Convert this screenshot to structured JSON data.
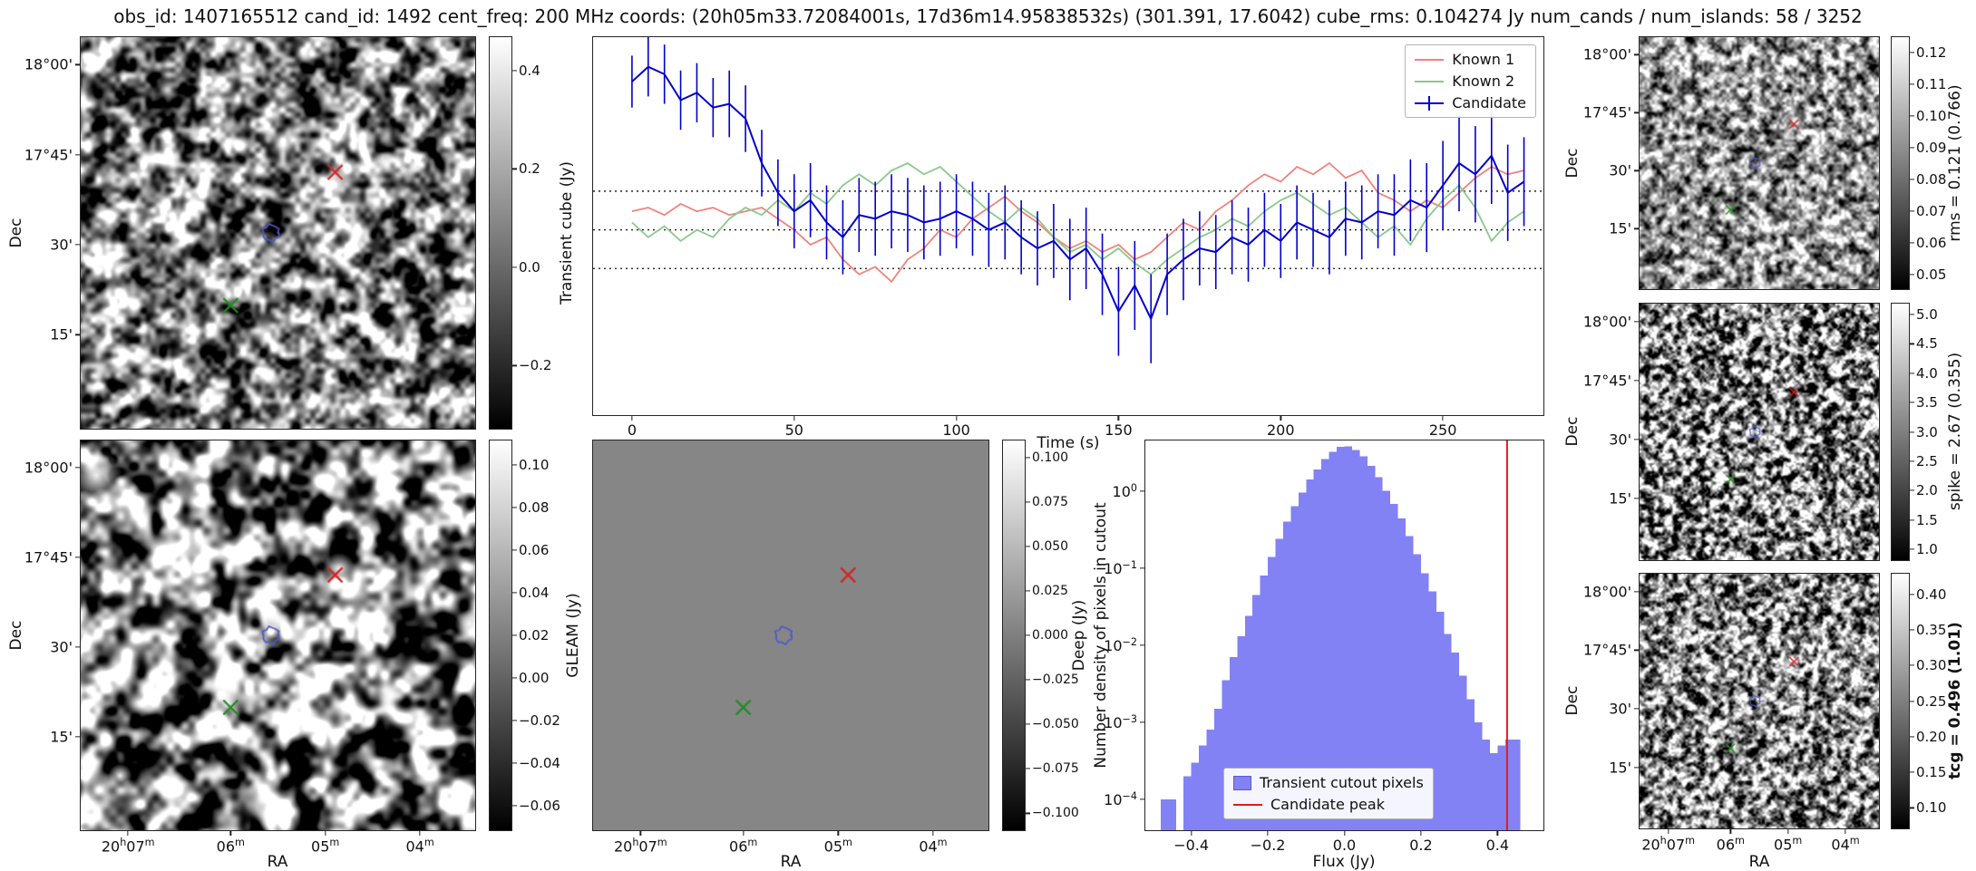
{
  "title": "obs_id: 1407165512 cand_id: 1492 cent_freq: 200 MHz coords: (20h05m33.72084001s, 17d36m14.95838532s) (301.391, 17.6042) cube_rms: 0.104274 Jy num_cands / num_islands: 58 / 3252",
  "labels": {
    "ra": "RA",
    "dec": "Dec",
    "time": "Time (s)",
    "flux": "Flux (Jy)",
    "hist_y": "Number density of pixels in cutout"
  },
  "image_ticks": {
    "dec": [
      "18°00'",
      "17°45'",
      "30'",
      "15'"
    ],
    "ra": [
      "20h07m",
      "06m",
      "05m",
      "04m"
    ]
  },
  "colorbars": {
    "transient": {
      "label": "Transient cube (Jy)",
      "ticks": [
        0.4,
        0.2,
        0.0,
        -0.2
      ],
      "vmin": -0.33,
      "vmax": 0.47,
      "decimals": 1
    },
    "gleam": {
      "label": "GLEAM (Jy)",
      "ticks": [
        0.1,
        0.08,
        0.06,
        0.04,
        0.02,
        0.0,
        -0.02,
        -0.04,
        -0.06
      ],
      "vmin": -0.072,
      "vmax": 0.112,
      "decimals": 2
    },
    "deep": {
      "label": "Deep (Jy)",
      "ticks": [
        0.1,
        0.075,
        0.05,
        0.025,
        0.0,
        -0.025,
        -0.05,
        -0.075,
        -0.1
      ],
      "vmin": -0.11,
      "vmax": 0.11,
      "decimals": 3
    },
    "rms": {
      "label": "rms = 0.121 (0.766)",
      "ticks": [
        0.12,
        0.11,
        0.1,
        0.09,
        0.08,
        0.07,
        0.06,
        0.05
      ],
      "vmin": 0.045,
      "vmax": 0.125,
      "decimals": 2
    },
    "spike": {
      "label": "spike = 2.67 (0.355)",
      "ticks": [
        5.0,
        4.5,
        4.0,
        3.5,
        3.0,
        2.5,
        2.0,
        1.5,
        1.0
      ],
      "vmin": 0.8,
      "vmax": 5.2,
      "decimals": 1
    },
    "tcg": {
      "label": "tcg = 0.496 (1.01)",
      "ticks": [
        0.4,
        0.35,
        0.3,
        0.25,
        0.2,
        0.15,
        0.1
      ],
      "vmin": 0.07,
      "vmax": 0.43,
      "decimals": 2
    }
  },
  "overlay_markers": [
    {
      "name": "known-source-1",
      "symbol": "x",
      "color": "#d62222",
      "fx": 0.645,
      "fy": 0.345
    },
    {
      "name": "candidate-contour",
      "symbol": "circle",
      "color": "#5356c9",
      "fx": 0.482,
      "fy": 0.5
    },
    {
      "name": "known-source-2",
      "symbol": "x",
      "color": "#1f8b1f",
      "fx": 0.38,
      "fy": 0.685
    }
  ],
  "chart_data": [
    {
      "type": "line",
      "title": "",
      "xlabel": "Time (s)",
      "ylabel": "",
      "xlim": [
        -12,
        281
      ],
      "ylim": [
        -0.5,
        0.52
      ],
      "xticks": [
        0,
        50,
        100,
        150,
        200,
        250
      ],
      "hlines": [
        0.104274,
        0.0,
        -0.104274
      ],
      "legend_position": "upper right",
      "x": [
        0,
        5,
        10,
        15,
        20,
        25,
        30,
        35,
        40,
        45,
        50,
        55,
        60,
        65,
        70,
        75,
        80,
        85,
        90,
        95,
        100,
        105,
        110,
        115,
        120,
        125,
        130,
        135,
        140,
        145,
        150,
        155,
        160,
        165,
        170,
        175,
        180,
        185,
        190,
        195,
        200,
        205,
        210,
        215,
        220,
        225,
        230,
        235,
        240,
        245,
        250,
        255,
        260,
        265,
        270,
        275
      ],
      "series": [
        {
          "name": "Known 1",
          "color": "#f0837c",
          "values": [
            0.05,
            0.06,
            0.04,
            0.07,
            0.05,
            0.06,
            0.04,
            0.05,
            0.06,
            0.03,
            0.0,
            -0.04,
            -0.02,
            -0.08,
            -0.12,
            -0.1,
            -0.14,
            -0.08,
            -0.05,
            0.0,
            -0.02,
            0.03,
            0.06,
            0.09,
            0.05,
            0.02,
            -0.02,
            -0.05,
            -0.03,
            -0.06,
            -0.04,
            -0.08,
            -0.06,
            -0.02,
            0.02,
            0.0,
            0.05,
            0.08,
            0.12,
            0.15,
            0.13,
            0.17,
            0.15,
            0.18,
            0.14,
            0.16,
            0.1,
            0.08,
            0.05,
            0.08,
            0.06,
            0.1,
            0.14,
            0.17,
            0.15,
            0.16
          ]
        },
        {
          "name": "Known 2",
          "color": "#8bc98b",
          "values": [
            0.02,
            -0.02,
            0.01,
            -0.03,
            0.0,
            -0.02,
            0.03,
            0.06,
            0.04,
            0.08,
            0.05,
            0.1,
            0.07,
            0.12,
            0.15,
            0.12,
            0.16,
            0.18,
            0.15,
            0.17,
            0.13,
            0.09,
            0.05,
            0.02,
            0.06,
            0.03,
            -0.02,
            -0.06,
            -0.04,
            -0.08,
            -0.05,
            -0.09,
            -0.12,
            -0.08,
            -0.05,
            -0.02,
            0.0,
            0.03,
            0.01,
            0.05,
            0.08,
            0.1,
            0.07,
            0.04,
            0.06,
            0.02,
            -0.02,
            0.01,
            -0.04,
            0.03,
            0.08,
            0.12,
            0.06,
            -0.03,
            0.02,
            0.05
          ]
        },
        {
          "name": "Candidate",
          "color": "#0000cc",
          "values": [
            0.4,
            0.44,
            0.42,
            0.35,
            0.37,
            0.33,
            0.34,
            0.3,
            0.18,
            0.1,
            0.05,
            0.08,
            0.02,
            -0.02,
            0.04,
            0.03,
            0.05,
            0.04,
            0.02,
            0.03,
            0.05,
            0.03,
            0.0,
            0.02,
            -0.02,
            -0.05,
            -0.03,
            -0.08,
            -0.05,
            -0.12,
            -0.22,
            -0.15,
            -0.24,
            -0.12,
            -0.08,
            -0.05,
            -0.06,
            -0.02,
            -0.04,
            0.0,
            -0.03,
            0.02,
            0.0,
            -0.02,
            0.03,
            0.02,
            0.05,
            0.04,
            0.08,
            0.06,
            0.12,
            0.18,
            0.15,
            0.2,
            0.1,
            0.13
          ],
          "errors": [
            0.07,
            0.08,
            0.08,
            0.08,
            0.08,
            0.08,
            0.09,
            0.09,
            0.09,
            0.09,
            0.1,
            0.1,
            0.1,
            0.1,
            0.1,
            0.1,
            0.1,
            0.1,
            0.1,
            0.1,
            0.1,
            0.1,
            0.1,
            0.1,
            0.1,
            0.1,
            0.1,
            0.11,
            0.11,
            0.11,
            0.12,
            0.12,
            0.12,
            0.11,
            0.11,
            0.1,
            0.1,
            0.1,
            0.1,
            0.1,
            0.1,
            0.1,
            0.1,
            0.1,
            0.1,
            0.1,
            0.1,
            0.11,
            0.11,
            0.12,
            0.12,
            0.13,
            0.13,
            0.13,
            0.13,
            0.12
          ]
        }
      ]
    },
    {
      "type": "bar",
      "title": "",
      "xlabel": "Flux (Jy)",
      "ylabel": "Number density of pixels in cutout",
      "yscale": "log",
      "xlim": [
        -0.52,
        0.52
      ],
      "ylim": [
        4e-05,
        4.5
      ],
      "xticks": [
        -0.4,
        -0.2,
        0.0,
        0.2,
        0.4
      ],
      "yticks": [
        1,
        0.1,
        0.01,
        0.001,
        0.0001
      ],
      "bar_color": "#8282f5",
      "bin_start": -0.5,
      "bin_width": 0.02,
      "values": [
        0.0,
        0.0001,
        0.0001,
        0.0,
        0.0002,
        0.0003,
        0.0005,
        0.0008,
        0.0015,
        0.0035,
        0.007,
        0.013,
        0.024,
        0.045,
        0.08,
        0.14,
        0.24,
        0.4,
        0.63,
        0.95,
        1.4,
        1.9,
        2.6,
        3.2,
        3.7,
        3.8,
        3.4,
        2.8,
        2.1,
        1.5,
        1.0,
        0.68,
        0.44,
        0.26,
        0.15,
        0.085,
        0.05,
        0.027,
        0.014,
        0.008,
        0.004,
        0.002,
        0.001,
        0.0006,
        0.0004,
        0.0005,
        0.0006,
        0.0006,
        0.0,
        0.0
      ],
      "vline": {
        "x": 0.425,
        "color": "#e01b1b",
        "label": "Candidate peak"
      },
      "legend": [
        "Transient cutout pixels",
        "Candidate peak"
      ],
      "legend_position": "lower center"
    }
  ]
}
